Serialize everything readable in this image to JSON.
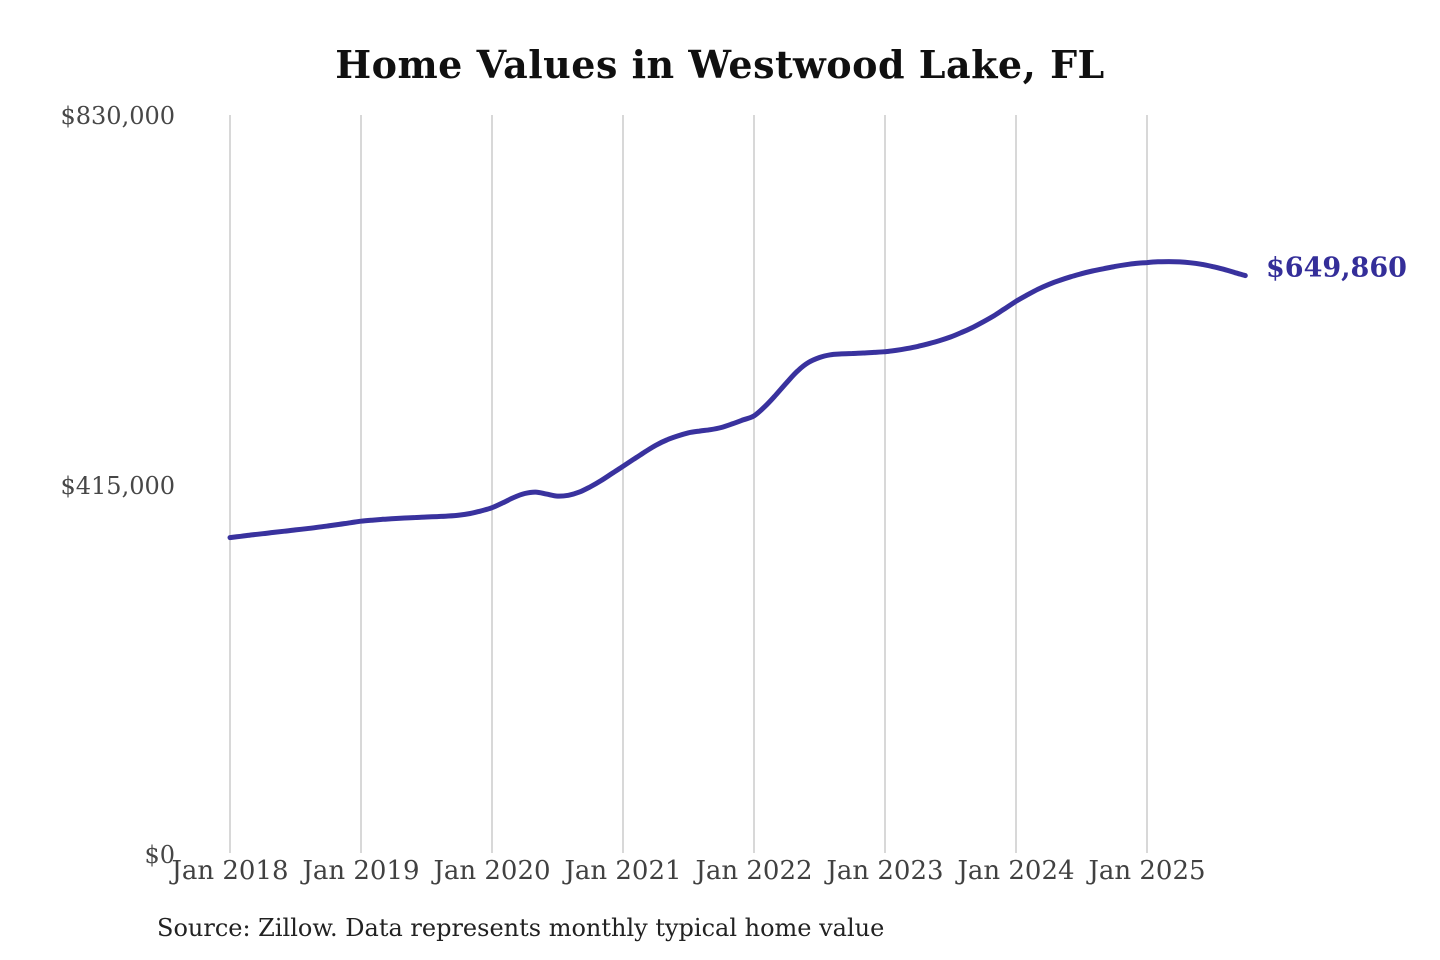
{
  "title": "Home Values in Westwood Lake, FL",
  "latest_value_label": "$649,860",
  "source_note": "Source: Zillow. Data represents monthly typical home value",
  "axes": {
    "y_ticks": [
      "$830,000",
      "$415,000",
      "$0"
    ],
    "x_ticks": [
      "Jan 2018",
      "Jan 2019",
      "Jan 2020",
      "Jan 2021",
      "Jan 2022",
      "Jan 2023",
      "Jan 2024",
      "Jan 2025"
    ]
  },
  "colors": {
    "line": "#39329e",
    "latest_label": "#342e99",
    "grid": "#cccccc"
  },
  "chart_data": {
    "type": "line",
    "title": "Home Values in Westwood Lake, FL",
    "x_start": "Jan 2018",
    "x_end": "Oct 2025",
    "x_interval": "month",
    "x_tick_labels": [
      "Jan 2018",
      "Jan 2019",
      "Jan 2020",
      "Jan 2021",
      "Jan 2022",
      "Jan 2023",
      "Jan 2024",
      "Jan 2025"
    ],
    "ylim": [
      0,
      830000
    ],
    "y_tick_values": [
      0,
      415000,
      830000
    ],
    "grid": "vertical",
    "legend": false,
    "latest_value": 649860,
    "series": [
      {
        "name": "Monthly typical home value",
        "values": [
          356000,
          357500,
          359000,
          360400,
          361800,
          363200,
          364600,
          366000,
          367500,
          369100,
          370800,
          372600,
          374400,
          375500,
          376500,
          377300,
          378000,
          378600,
          379100,
          379600,
          380200,
          381200,
          383000,
          386000,
          389500,
          395000,
          401000,
          405500,
          407000,
          404800,
          402500,
          403500,
          407000,
          413000,
          420000,
          428000,
          436000,
          444000,
          452000,
          459500,
          465500,
          470000,
          473500,
          475500,
          477000,
          479500,
          483500,
          488000,
          492500,
          503000,
          516000,
          530000,
          543000,
          552500,
          558000,
          561000,
          562000,
          562500,
          563000,
          563700,
          564500,
          566000,
          568000,
          570500,
          573500,
          577000,
          581000,
          586000,
          591500,
          598000,
          605000,
          613000,
          621000,
          628000,
          634500,
          640000,
          644500,
          648500,
          652000,
          655000,
          657500,
          660000,
          662000,
          663500,
          664500,
          665300,
          665600,
          665200,
          664200,
          662500,
          660000,
          657000,
          653500,
          649860
        ]
      }
    ]
  }
}
